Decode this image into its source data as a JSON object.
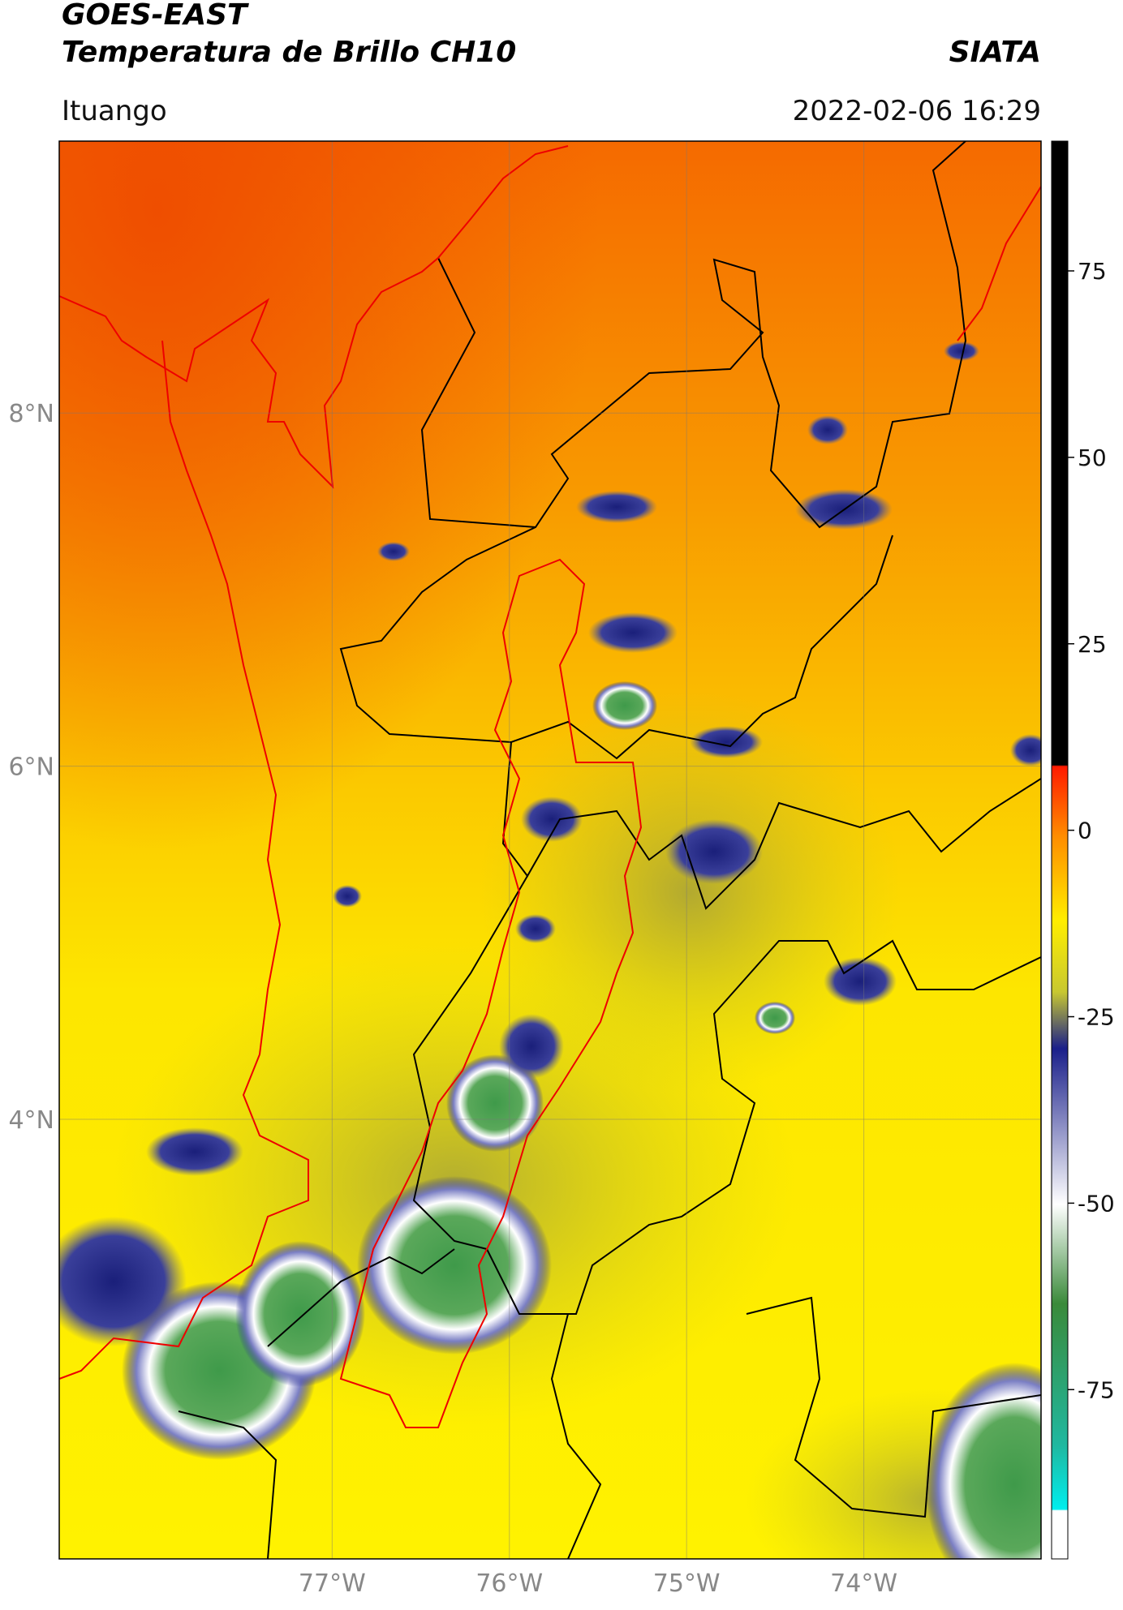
{
  "header": {
    "title": "GOES-EAST",
    "subtitle": "Temperatura de Brillo CH10",
    "source": "SIATA",
    "location": "Ituango",
    "datetime": "2022-02-06 16:29"
  },
  "map": {
    "xlim": [
      -78.54,
      -73.0
    ],
    "ylim": [
      1.51,
      9.54
    ],
    "xticks": [
      {
        "value": -77,
        "label": "77°W"
      },
      {
        "value": -76,
        "label": "76°W"
      },
      {
        "value": -75,
        "label": "75°W"
      },
      {
        "value": -74,
        "label": "74°W"
      }
    ],
    "yticks": [
      {
        "value": 4,
        "label": "4°N"
      },
      {
        "value": 6,
        "label": "6°N"
      },
      {
        "value": 8,
        "label": "8°N"
      }
    ],
    "grid": true
  },
  "colorbar": {
    "lim": [
      -97.7,
      92.4
    ],
    "ticks": [
      -75,
      -50,
      -25,
      0,
      25,
      50,
      75
    ]
  }
}
